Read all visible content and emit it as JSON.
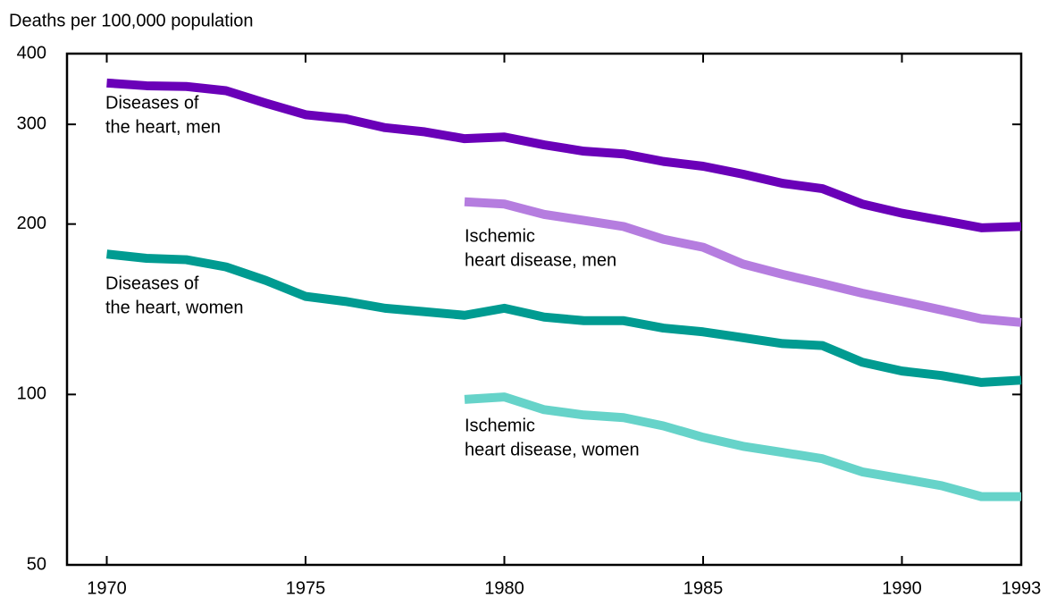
{
  "chart_data": {
    "type": "line",
    "y_axis_label": "Deaths per 100,000 population",
    "x": [
      1970,
      1971,
      1972,
      1973,
      1974,
      1975,
      1976,
      1977,
      1978,
      1979,
      1980,
      1981,
      1982,
      1983,
      1984,
      1985,
      1986,
      1987,
      1988,
      1989,
      1990,
      1991,
      1992,
      1993
    ],
    "series": [
      {
        "name": [
          "Diseases of",
          "the heart, men"
        ],
        "color": "#6a00b8",
        "values": [
          355,
          351,
          350,
          344,
          327,
          312,
          307,
          296,
          291,
          283,
          285,
          276,
          269,
          266,
          258,
          253,
          245,
          236,
          231,
          217,
          209,
          203,
          197,
          198
        ]
      },
      {
        "name": [
          "Ischemic",
          "heart disease, men"
        ],
        "color": "#b57ddf",
        "values": [
          null,
          null,
          null,
          null,
          null,
          null,
          null,
          null,
          null,
          219,
          217,
          208,
          203,
          198,
          188,
          182,
          170,
          163,
          157,
          151,
          146,
          141,
          136,
          134
        ]
      },
      {
        "name": [
          "Diseases of",
          "the heart, women"
        ],
        "color": "#009b91",
        "values": [
          177,
          174,
          173,
          168,
          159,
          149,
          146,
          142,
          140,
          138,
          142,
          137,
          135,
          135,
          131,
          129,
          126,
          123,
          122,
          114,
          110,
          108,
          105,
          106
        ]
      },
      {
        "name": [
          "Ischemic",
          "heart disease, women"
        ],
        "color": "#66d3c9",
        "values": [
          null,
          null,
          null,
          null,
          null,
          null,
          null,
          null,
          null,
          98,
          99,
          94,
          92,
          91,
          88,
          84,
          81,
          79,
          77,
          73,
          71,
          69,
          66,
          66
        ]
      }
    ],
    "xlim": [
      1969,
      1993
    ],
    "xticks": [
      1970,
      1975,
      1980,
      1985,
      1990,
      1993
    ],
    "ylim": [
      50,
      400
    ],
    "yticks": [
      50,
      100,
      200,
      300,
      400
    ],
    "log_y": true
  }
}
